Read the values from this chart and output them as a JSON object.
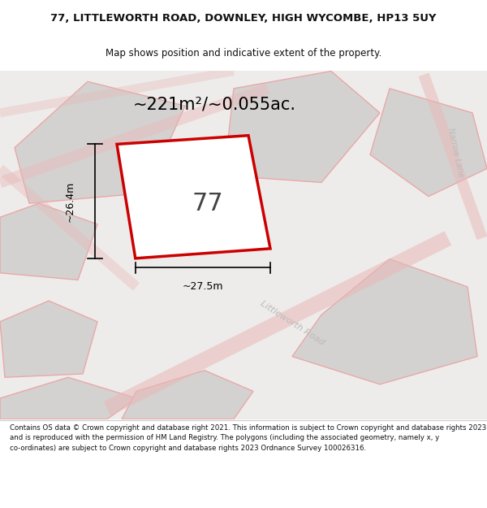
{
  "title_line1": "77, LITTLEWORTH ROAD, DOWNLEY, HIGH WYCOMBE, HP13 5UY",
  "title_line2": "Map shows position and indicative extent of the property.",
  "area_text": "~221m²/~0.055ac.",
  "plot_number": "77",
  "dim_width": "~27.5m",
  "dim_height": "~26.4m",
  "road_label": "Littleworth Road",
  "lane_label": "Narrow Lane",
  "footer_text": "Contains OS data © Crown copyright and database right 2021. This information is subject to Crown copyright and database rights 2023 and is reproduced with the permission of HM Land Registry. The polygons (including the associated geometry, namely x, y co-ordinates) are subject to Crown copyright and database rights 2023 Ordnance Survey 100026316.",
  "bg_color": "#eeecea",
  "plot_fill": "#ffffff",
  "plot_edge": "#cc0000",
  "neighbor_fill": "#d4d2d0",
  "neighbor_edge": "#e8a8a8",
  "road_stripe_color": "#e8b8b8",
  "title_color": "#111111",
  "footer_color": "#111111"
}
